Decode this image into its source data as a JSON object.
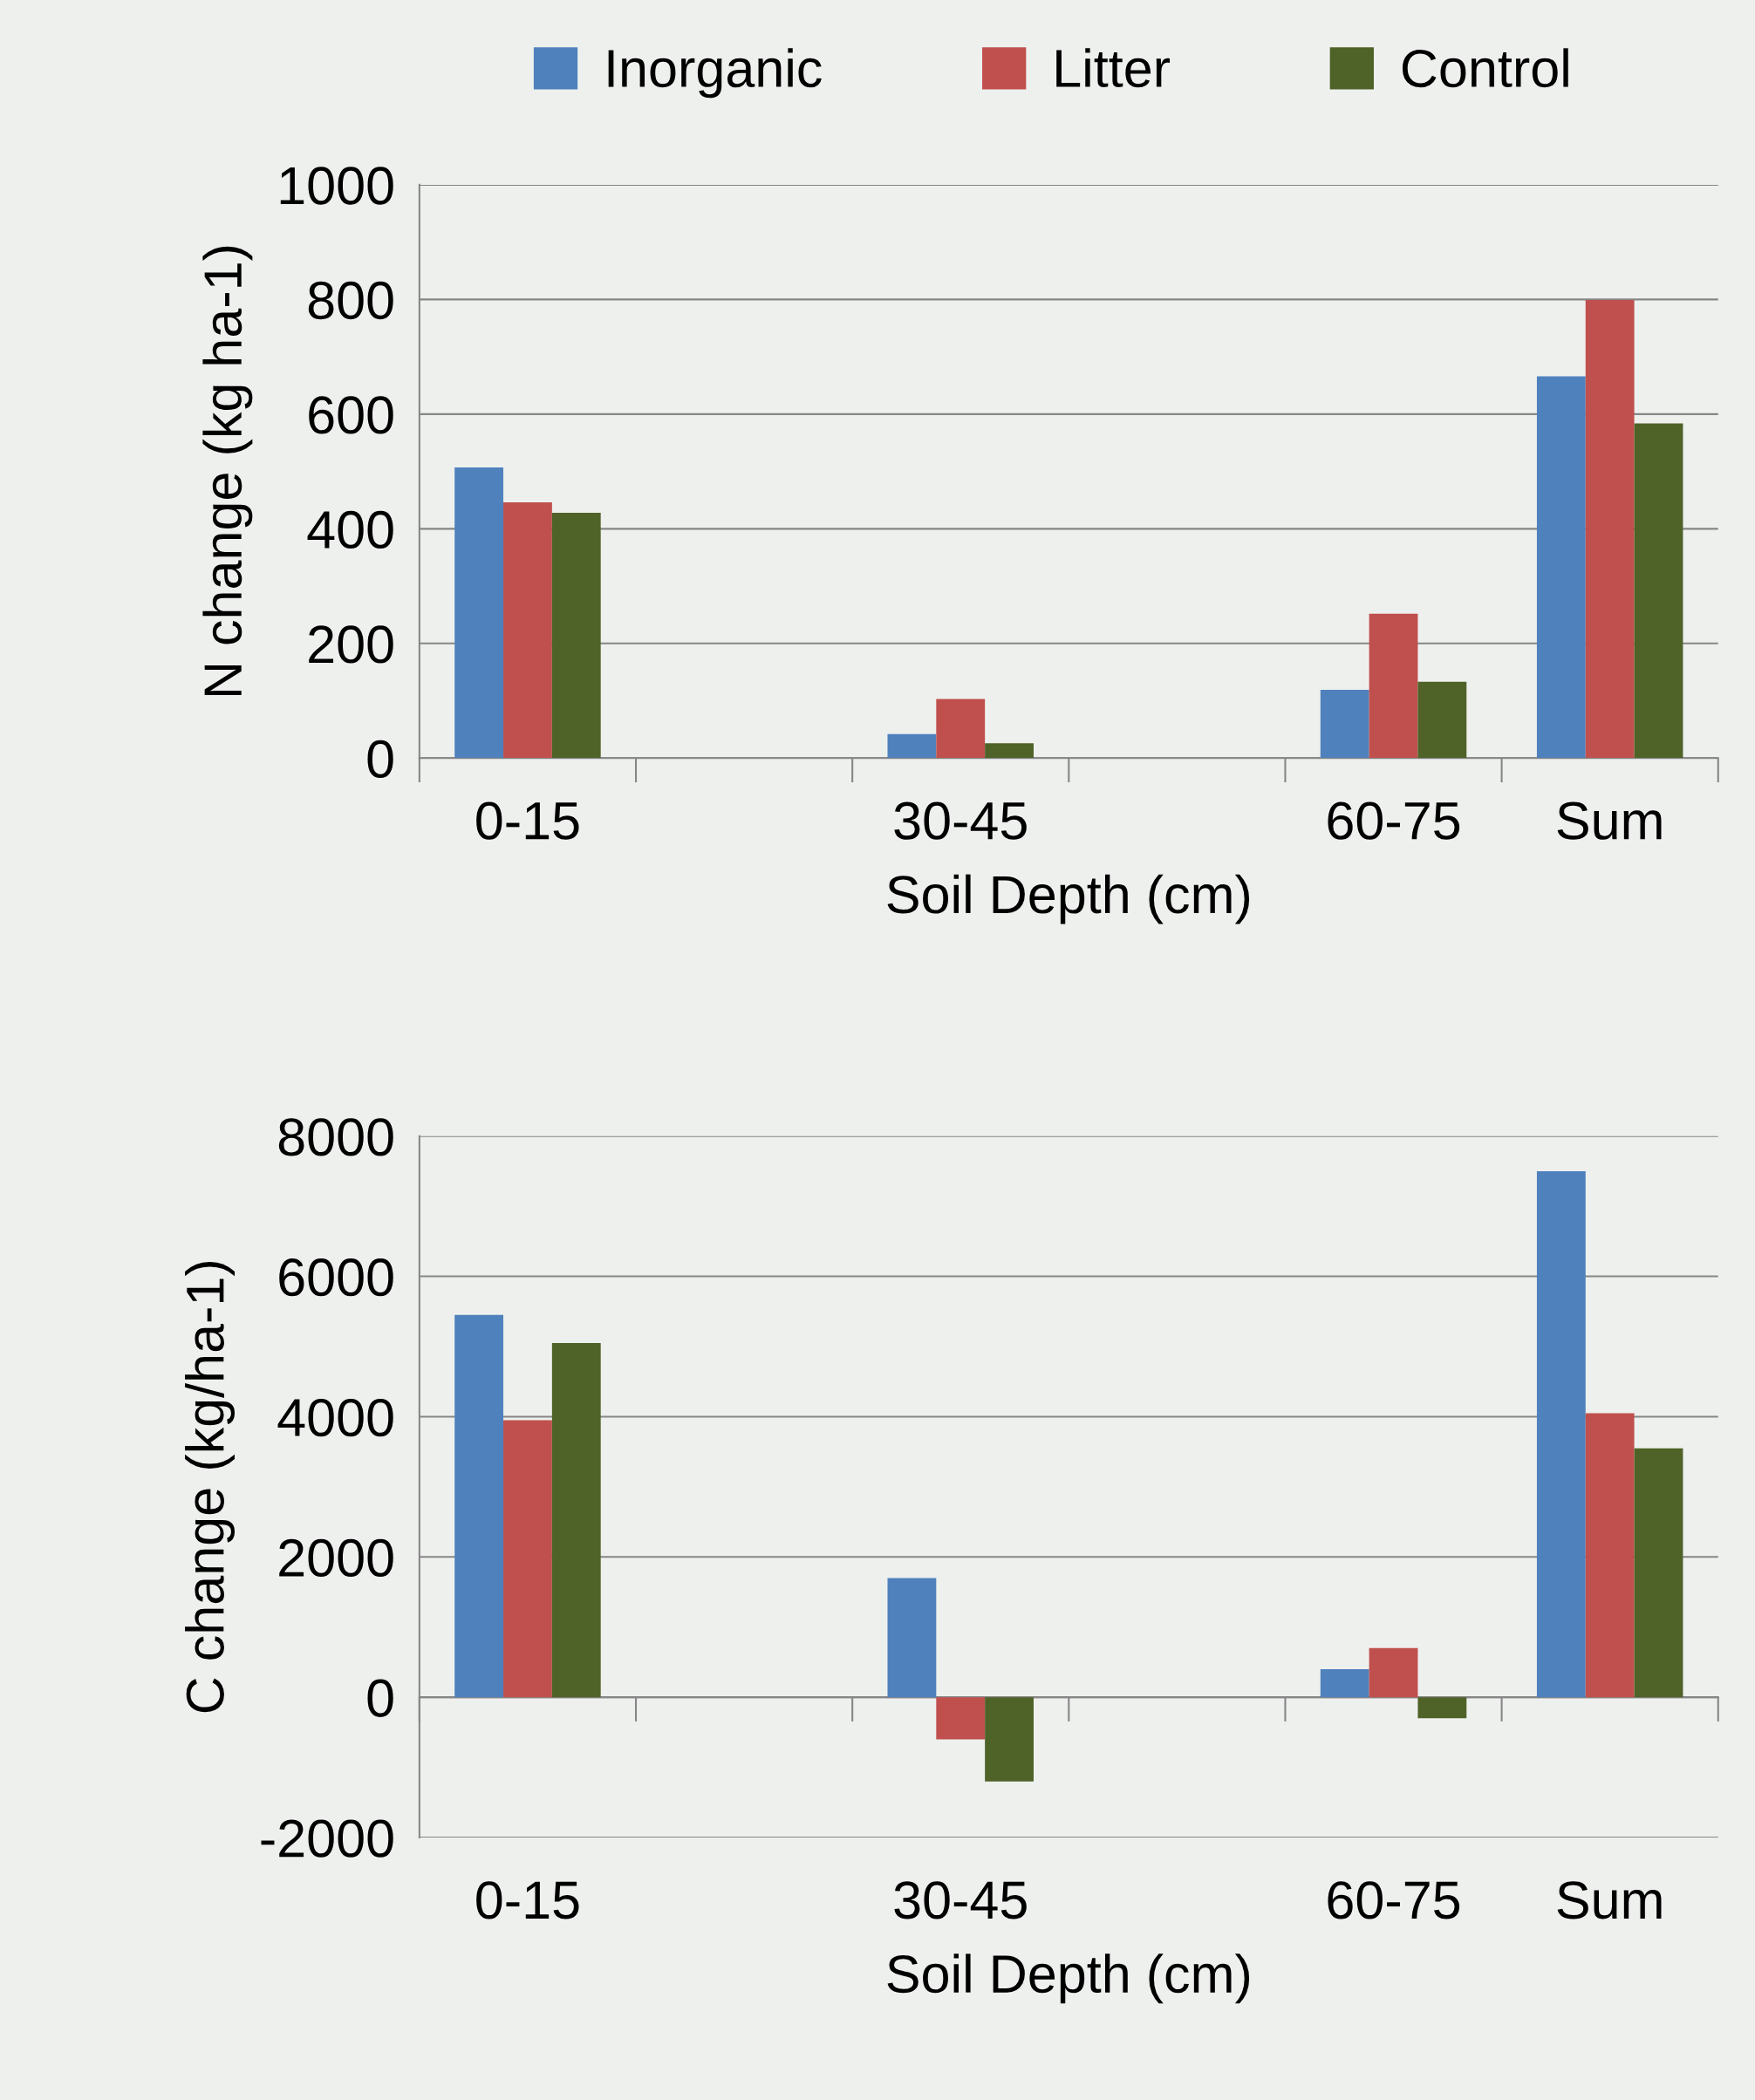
{
  "chart_data": [
    {
      "type": "bar",
      "categories": [
        "0-15",
        null,
        "30-45",
        null,
        "60-75",
        "Sum"
      ],
      "xlabel": "Soil Depth (cm)",
      "ylabel": "N change (kg ha-1)",
      "ylim": [
        0,
        1000
      ],
      "yticks": [
        0,
        200,
        400,
        600,
        800,
        1000
      ],
      "grid": "y",
      "legend": "top",
      "series": [
        {
          "name": "Inorganic",
          "color": "#4f81bd",
          "values": [
            507,
            null,
            42,
            null,
            119,
            666
          ]
        },
        {
          "name": "Litter",
          "color": "#c0504d",
          "values": [
            446,
            null,
            103,
            null,
            252,
            799
          ]
        },
        {
          "name": "Control",
          "color": "#4f6228",
          "values": [
            428,
            null,
            26,
            null,
            133,
            584
          ]
        }
      ]
    },
    {
      "type": "bar",
      "categories": [
        "0-15",
        null,
        "30-45",
        null,
        "60-75",
        "Sum"
      ],
      "xlabel": "Soil Depth (cm)",
      "ylabel": "C change (kg/ha-1)",
      "ylim": [
        -2000,
        8000
      ],
      "yticks": [
        -2000,
        0,
        2000,
        4000,
        6000,
        8000
      ],
      "grid": "y",
      "series": [
        {
          "color": "#4f81bd",
          "values": [
            5450,
            null,
            1700,
            null,
            400,
            7500
          ]
        },
        {
          "color": "#c0504d",
          "values": [
            3950,
            null,
            -600,
            null,
            700,
            4050
          ]
        },
        {
          "color": "#4f6228",
          "values": [
            5050,
            null,
            -1200,
            null,
            -300,
            3550
          ]
        }
      ]
    }
  ]
}
